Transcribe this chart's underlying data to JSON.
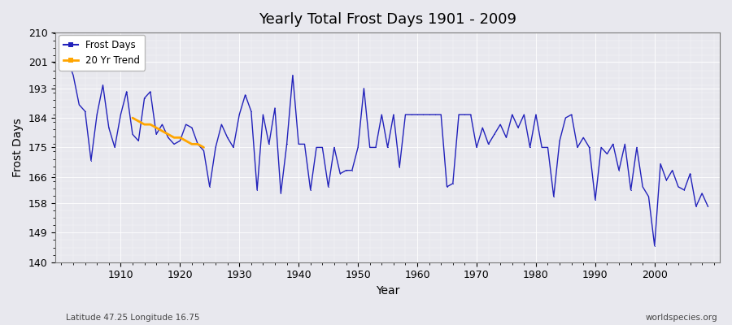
{
  "title": "Yearly Total Frost Days 1901 - 2009",
  "xlabel": "Year",
  "ylabel": "Frost Days",
  "footnote_left": "Latitude 47.25 Longitude 16.75",
  "footnote_right": "worldspecies.org",
  "ylim": [
    140,
    210
  ],
  "yticks": [
    140,
    149,
    158,
    166,
    175,
    184,
    193,
    201,
    210
  ],
  "xlim": [
    1899,
    2011
  ],
  "xticks": [
    1910,
    1920,
    1930,
    1940,
    1950,
    1960,
    1970,
    1980,
    1990,
    2000
  ],
  "line_color": "#2222bb",
  "trend_color": "#FFA500",
  "plot_bg_color": "#e8e8ee",
  "fig_bg_color": "#e8e8ee",
  "years": [
    1901,
    1902,
    1903,
    1904,
    1905,
    1906,
    1907,
    1908,
    1909,
    1910,
    1911,
    1912,
    1913,
    1914,
    1915,
    1916,
    1917,
    1918,
    1919,
    1920,
    1921,
    1922,
    1923,
    1924,
    1925,
    1926,
    1927,
    1928,
    1929,
    1930,
    1931,
    1932,
    1933,
    1934,
    1935,
    1936,
    1937,
    1938,
    1939,
    1940,
    1941,
    1942,
    1943,
    1944,
    1945,
    1946,
    1947,
    1948,
    1949,
    1950,
    1951,
    1952,
    1953,
    1954,
    1955,
    1956,
    1957,
    1958,
    1959,
    1960,
    1961,
    1962,
    1963,
    1964,
    1965,
    1966,
    1967,
    1968,
    1969,
    1970,
    1971,
    1972,
    1973,
    1974,
    1975,
    1976,
    1977,
    1978,
    1979,
    1980,
    1981,
    1982,
    1983,
    1984,
    1985,
    1986,
    1987,
    1988,
    1989,
    1990,
    1991,
    1992,
    1993,
    1994,
    1995,
    1996,
    1997,
    1998,
    1999,
    2000,
    2001,
    2002,
    2003,
    2004,
    2005,
    2006,
    2007,
    2008,
    2009
  ],
  "frost_days": [
    202,
    197,
    188,
    186,
    171,
    185,
    194,
    181,
    175,
    185,
    192,
    179,
    177,
    190,
    192,
    179,
    182,
    178,
    176,
    177,
    182,
    181,
    176,
    174,
    163,
    175,
    182,
    178,
    175,
    185,
    191,
    186,
    162,
    185,
    176,
    187,
    161,
    176,
    197,
    176,
    176,
    162,
    175,
    175,
    163,
    175,
    167,
    168,
    168,
    175,
    193,
    175,
    175,
    185,
    175,
    185,
    169,
    185,
    185,
    185,
    185,
    185,
    185,
    185,
    163,
    164,
    185,
    185,
    185,
    175,
    181,
    176,
    179,
    182,
    178,
    185,
    181,
    185,
    175,
    185,
    175,
    175,
    160,
    177,
    184,
    185,
    175,
    178,
    175,
    159,
    175,
    173,
    176,
    168,
    176,
    162,
    175,
    163,
    160,
    145,
    170,
    165,
    168,
    163,
    162,
    167,
    157,
    161,
    157
  ],
  "trend_years": [
    1912,
    1913,
    1914,
    1915,
    1916,
    1917,
    1918,
    1919,
    1920,
    1921,
    1922,
    1923,
    1924
  ],
  "trend_values": [
    184,
    183,
    182,
    182,
    181,
    180,
    179,
    178,
    178,
    177,
    176,
    176,
    175
  ]
}
